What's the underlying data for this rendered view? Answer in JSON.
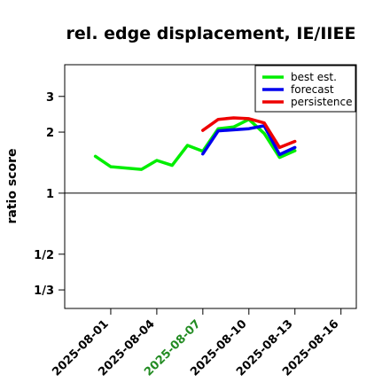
{
  "chart_data": {
    "type": "line",
    "title": "rel. edge displacement, IE/IIEE",
    "xlabel": "",
    "ylabel": "ratio score",
    "x_axis": {
      "type": "date",
      "range": [
        "2025-07-29",
        "2025-08-17"
      ],
      "ticks": [
        {
          "value": "2025-08-01",
          "label": "2025-08-01",
          "color": "#000000"
        },
        {
          "value": "2025-08-04",
          "label": "2025-08-04",
          "color": "#000000"
        },
        {
          "value": "2025-08-07",
          "label": "2025-08-07",
          "color": "#228B22"
        },
        {
          "value": "2025-08-10",
          "label": "2025-08-10",
          "color": "#000000"
        },
        {
          "value": "2025-08-13",
          "label": "2025-08-13",
          "color": "#000000"
        },
        {
          "value": "2025-08-16",
          "label": "2025-08-16",
          "color": "#000000"
        }
      ]
    },
    "y_axis": {
      "scale": "log",
      "range": [
        0.27,
        4.3
      ],
      "ticks": [
        {
          "value": 3,
          "label": "3"
        },
        {
          "value": 2,
          "label": "2"
        },
        {
          "value": 1,
          "label": "1"
        },
        {
          "value": 0.5,
          "label": "1/2"
        },
        {
          "value": 0.3333,
          "label": "1/3"
        }
      ]
    },
    "reference_line": {
      "y": 1,
      "color": "#000000"
    },
    "legend": {
      "placement": "top-right"
    },
    "grid": false,
    "series": [
      {
        "name": "best est.",
        "color": "#00ee00",
        "points": [
          {
            "x": "2025-07-31",
            "y": 1.52
          },
          {
            "x": "2025-08-01",
            "y": 1.35
          },
          {
            "x": "2025-08-03",
            "y": 1.31
          },
          {
            "x": "2025-08-04",
            "y": 1.45
          },
          {
            "x": "2025-08-05",
            "y": 1.37
          },
          {
            "x": "2025-08-06",
            "y": 1.72
          },
          {
            "x": "2025-08-07",
            "y": 1.61
          },
          {
            "x": "2025-08-08",
            "y": 2.08
          },
          {
            "x": "2025-08-09",
            "y": 2.12
          },
          {
            "x": "2025-08-10",
            "y": 2.31
          },
          {
            "x": "2025-08-11",
            "y": 1.97
          },
          {
            "x": "2025-08-12",
            "y": 1.5
          },
          {
            "x": "2025-08-13",
            "y": 1.62
          }
        ]
      },
      {
        "name": "forecast",
        "color": "#0000ee",
        "points": [
          {
            "x": "2025-08-07",
            "y": 1.56
          },
          {
            "x": "2025-08-08",
            "y": 2.03
          },
          {
            "x": "2025-08-10",
            "y": 2.08
          },
          {
            "x": "2025-08-11",
            "y": 2.15
          },
          {
            "x": "2025-08-12",
            "y": 1.55
          },
          {
            "x": "2025-08-13",
            "y": 1.68
          }
        ]
      },
      {
        "name": "persistence",
        "color": "#ee0000",
        "points": [
          {
            "x": "2025-08-07",
            "y": 2.04
          },
          {
            "x": "2025-08-08",
            "y": 2.31
          },
          {
            "x": "2025-08-09",
            "y": 2.35
          },
          {
            "x": "2025-08-10",
            "y": 2.33
          },
          {
            "x": "2025-08-11",
            "y": 2.22
          },
          {
            "x": "2025-08-12",
            "y": 1.68
          },
          {
            "x": "2025-08-13",
            "y": 1.8
          }
        ]
      }
    ]
  }
}
